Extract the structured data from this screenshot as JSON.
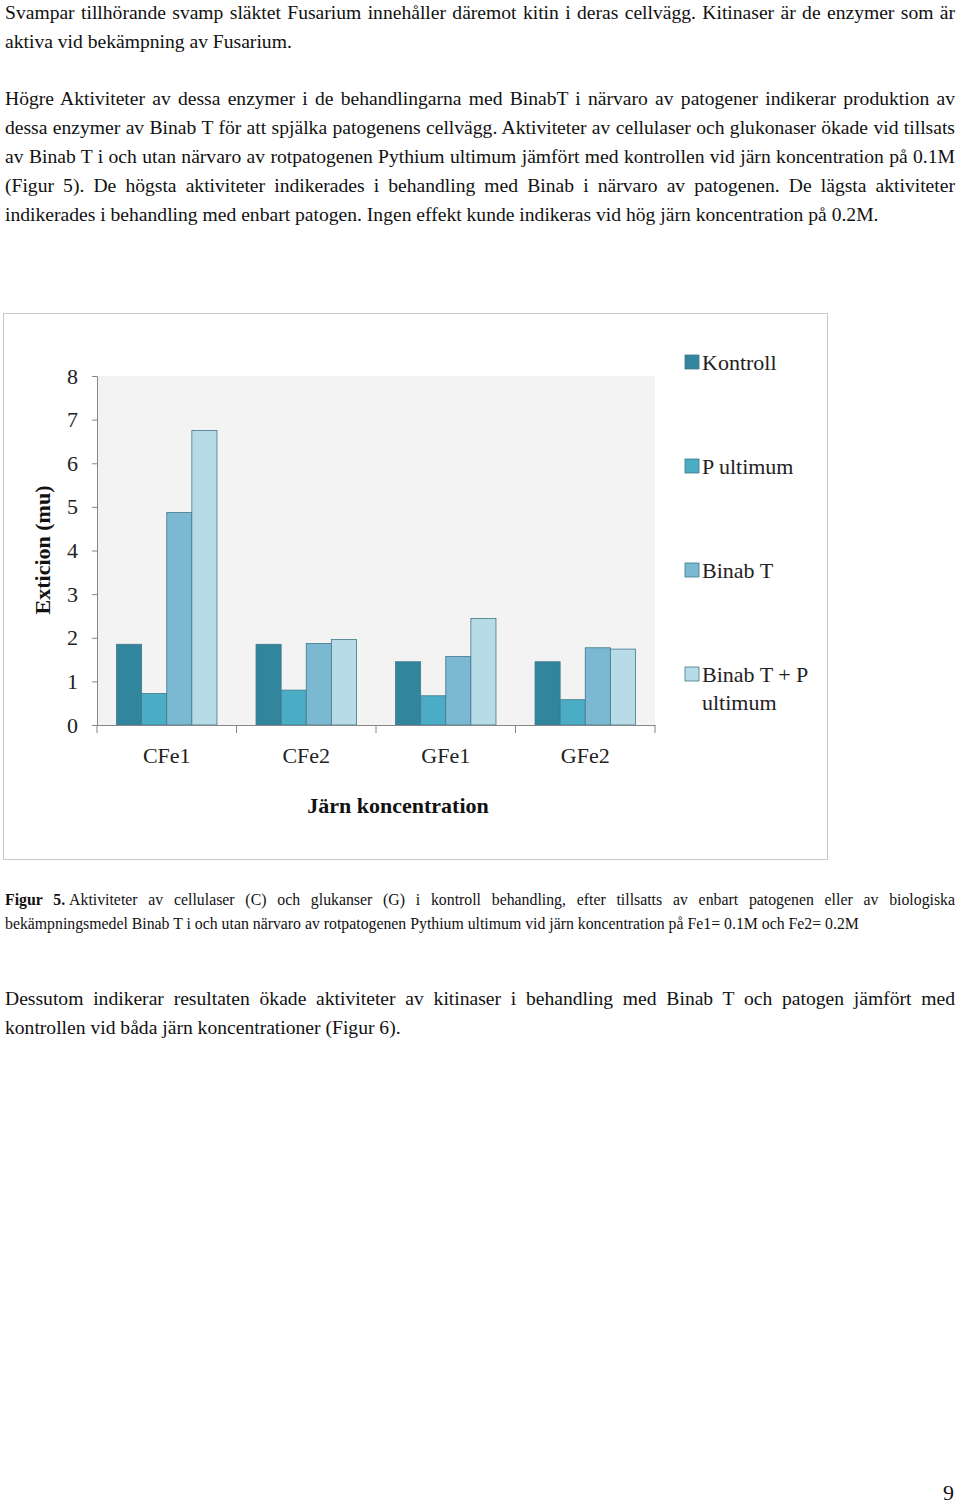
{
  "paragraphs": [
    "Svampar tillhörande svamp släktet Fusarium innehåller däremot kitin i deras cellvägg. Kitinaser är de enzymer som är aktiva vid bekämpning av Fusarium.",
    "Högre Aktiviteter av dessa enzymer i de behandlingarna med BinabT i närvaro av patogener indikerar produktion av dessa enzymer av Binab T för att spjälka patogenens cellvägg. Aktiviteter av cellulaser och glukonaser ökade vid tillsats av Binab T i och utan närvaro av rotpatogenen Pythium ultimum jämfört med kontrollen vid järn koncentration på 0.1M (Figur 5). De högsta aktiviteter indikerades i behandling med Binab i närvaro av patogenen. De lägsta aktiviteter indikerades i behandling med enbart patogen. Ingen effekt kunde indikeras vid hög järn koncentration på 0.2M."
  ],
  "chart_data": {
    "type": "bar",
    "categories": [
      "CFe1",
      "CFe2",
      "GFe1",
      "GFe2"
    ],
    "series": [
      {
        "name": "Kontroll",
        "color": "#31859c",
        "values": [
          1.85,
          1.85,
          1.45,
          1.45
        ]
      },
      {
        "name": "P ultimum",
        "color": "#4bacc6",
        "values": [
          0.72,
          0.8,
          0.67,
          0.58
        ]
      },
      {
        "name": "Binab T",
        "color": "#7ab9d1",
        "values": [
          4.87,
          1.87,
          1.57,
          1.77
        ]
      },
      {
        "name": "Binab T + P ultimum",
        "color": "#b8dce7",
        "values": [
          6.75,
          1.96,
          2.44,
          1.74
        ]
      }
    ],
    "x_label": "Järn koncentration",
    "y_label": "Exticion (mu)",
    "ylim": [
      0,
      8
    ],
    "yticks": [
      0,
      1,
      2,
      3,
      4,
      5,
      6,
      7,
      8
    ],
    "grid": false,
    "legend": "right"
  },
  "caption": {
    "label": "Figur 5.",
    "text": "Aktiviteter av cellulaser (C) och glukanser (G) i kontroll behandling, efter tillsatts av enbart patogenen eller av biologiska bekämpningsmedel Binab T i och utan närvaro av rotpatogenen Pythium ultimum vid järn koncentration på Fe1= 0.1M och Fe2= 0.2M"
  },
  "paragraphs_after": [
    "Dessutom indikerar resultaten ökade aktiviteter av kitinaser i behandling med Binab T och patogen jämfört med kontrollen vid båda järn koncentrationer (Figur 6)."
  ],
  "page_number": "9"
}
